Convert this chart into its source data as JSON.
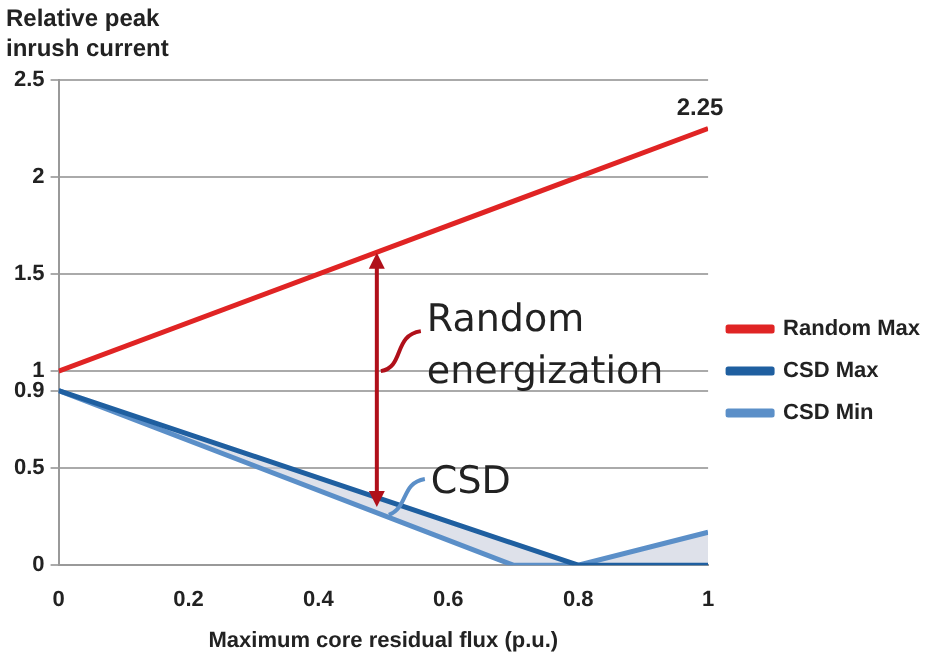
{
  "chart_data": {
    "type": "line",
    "ylabel": "Relative peak inrush current",
    "xlabel": "Maximum core residual flux (p.u.)",
    "xlim": [
      0,
      1
    ],
    "xticks": [
      0,
      0.2,
      0.4,
      0.6,
      0.8,
      1
    ],
    "ylim": [
      0,
      2.5
    ],
    "yticks": [
      0,
      0.5,
      0.9,
      1,
      1.5,
      2,
      2.5
    ],
    "grid": "y",
    "legend": "right",
    "marker": "none",
    "line_style": "solid",
    "series": [
      {
        "name": "Random Max",
        "color": "#e02424",
        "x": [
          0,
          1
        ],
        "values": [
          1,
          2.25
        ]
      },
      {
        "name": "CSD Max",
        "color": "#1f5fa0",
        "x": [
          0,
          0.8,
          1
        ],
        "values": [
          0.9,
          0,
          0
        ]
      },
      {
        "name": "CSD Min",
        "color": "#5b8fc8",
        "x": [
          0,
          0.7,
          0.8,
          1
        ],
        "values": [
          0.9,
          0,
          0,
          0.17
        ],
        "lower": [
          0.9,
          0,
          0,
          0
        ],
        "upper": [
          0.9,
          0.11,
          0,
          0.17
        ]
      }
    ],
    "annotations": [
      "2.25",
      "Random energization",
      "CSD"
    ]
  }
}
